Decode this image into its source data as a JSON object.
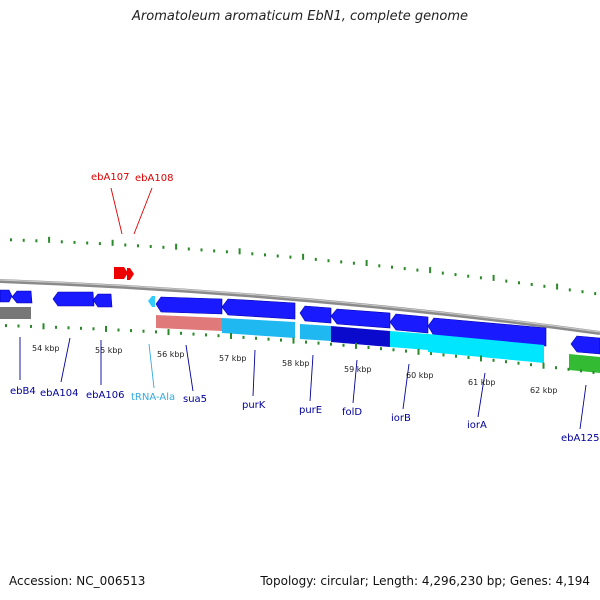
{
  "title": "Aromatoleum aromaticum EbN1, complete genome",
  "footer": {
    "accession": "Accession: NC_006513",
    "topology": "Topology: circular; Length: 4,296,230 bp; Genes: 4,194"
  },
  "colors": {
    "backbone": "#808080",
    "cds_dark": "#0000cc",
    "cds_mid": "#1a1aff",
    "cds_light": "#00e6ff",
    "cds_sky": "#20b8f0",
    "rna_red": "#ee0000",
    "trna": "#33ccff",
    "gc_tick": "#2a8a2a",
    "salmon": "#e07a7a",
    "green": "#33bb33",
    "label_blue": "#000099",
    "label_red": "#dd0000",
    "label_cyan": "#33aadd"
  },
  "scale": {
    "ticks": [
      {
        "label": "54 kbp"
      },
      {
        "label": "55 kbp"
      },
      {
        "label": "56 kbp"
      },
      {
        "label": "57 kbp"
      },
      {
        "label": "58 kbp"
      },
      {
        "label": "59 kbp"
      },
      {
        "label": "60 kbp"
      },
      {
        "label": "61 kbp"
      },
      {
        "label": "62 kbp"
      }
    ]
  },
  "genes": [
    {
      "label": "ebB4",
      "color": "label_blue"
    },
    {
      "label": "ebA104",
      "color": "label_blue"
    },
    {
      "label": "ebA106",
      "color": "label_blue"
    },
    {
      "label": "tRNA-Ala",
      "color": "label_cyan"
    },
    {
      "label": "sua5",
      "color": "label_blue"
    },
    {
      "label": "purK",
      "color": "label_blue"
    },
    {
      "label": "purE",
      "color": "label_blue"
    },
    {
      "label": "folD",
      "color": "label_blue"
    },
    {
      "label": "iorB",
      "color": "label_blue"
    },
    {
      "label": "iorA",
      "color": "label_blue"
    },
    {
      "label": "ebA125",
      "color": "label_blue"
    },
    {
      "label": "ebA107",
      "color": "label_red"
    },
    {
      "label": "ebA108",
      "color": "label_red"
    }
  ]
}
